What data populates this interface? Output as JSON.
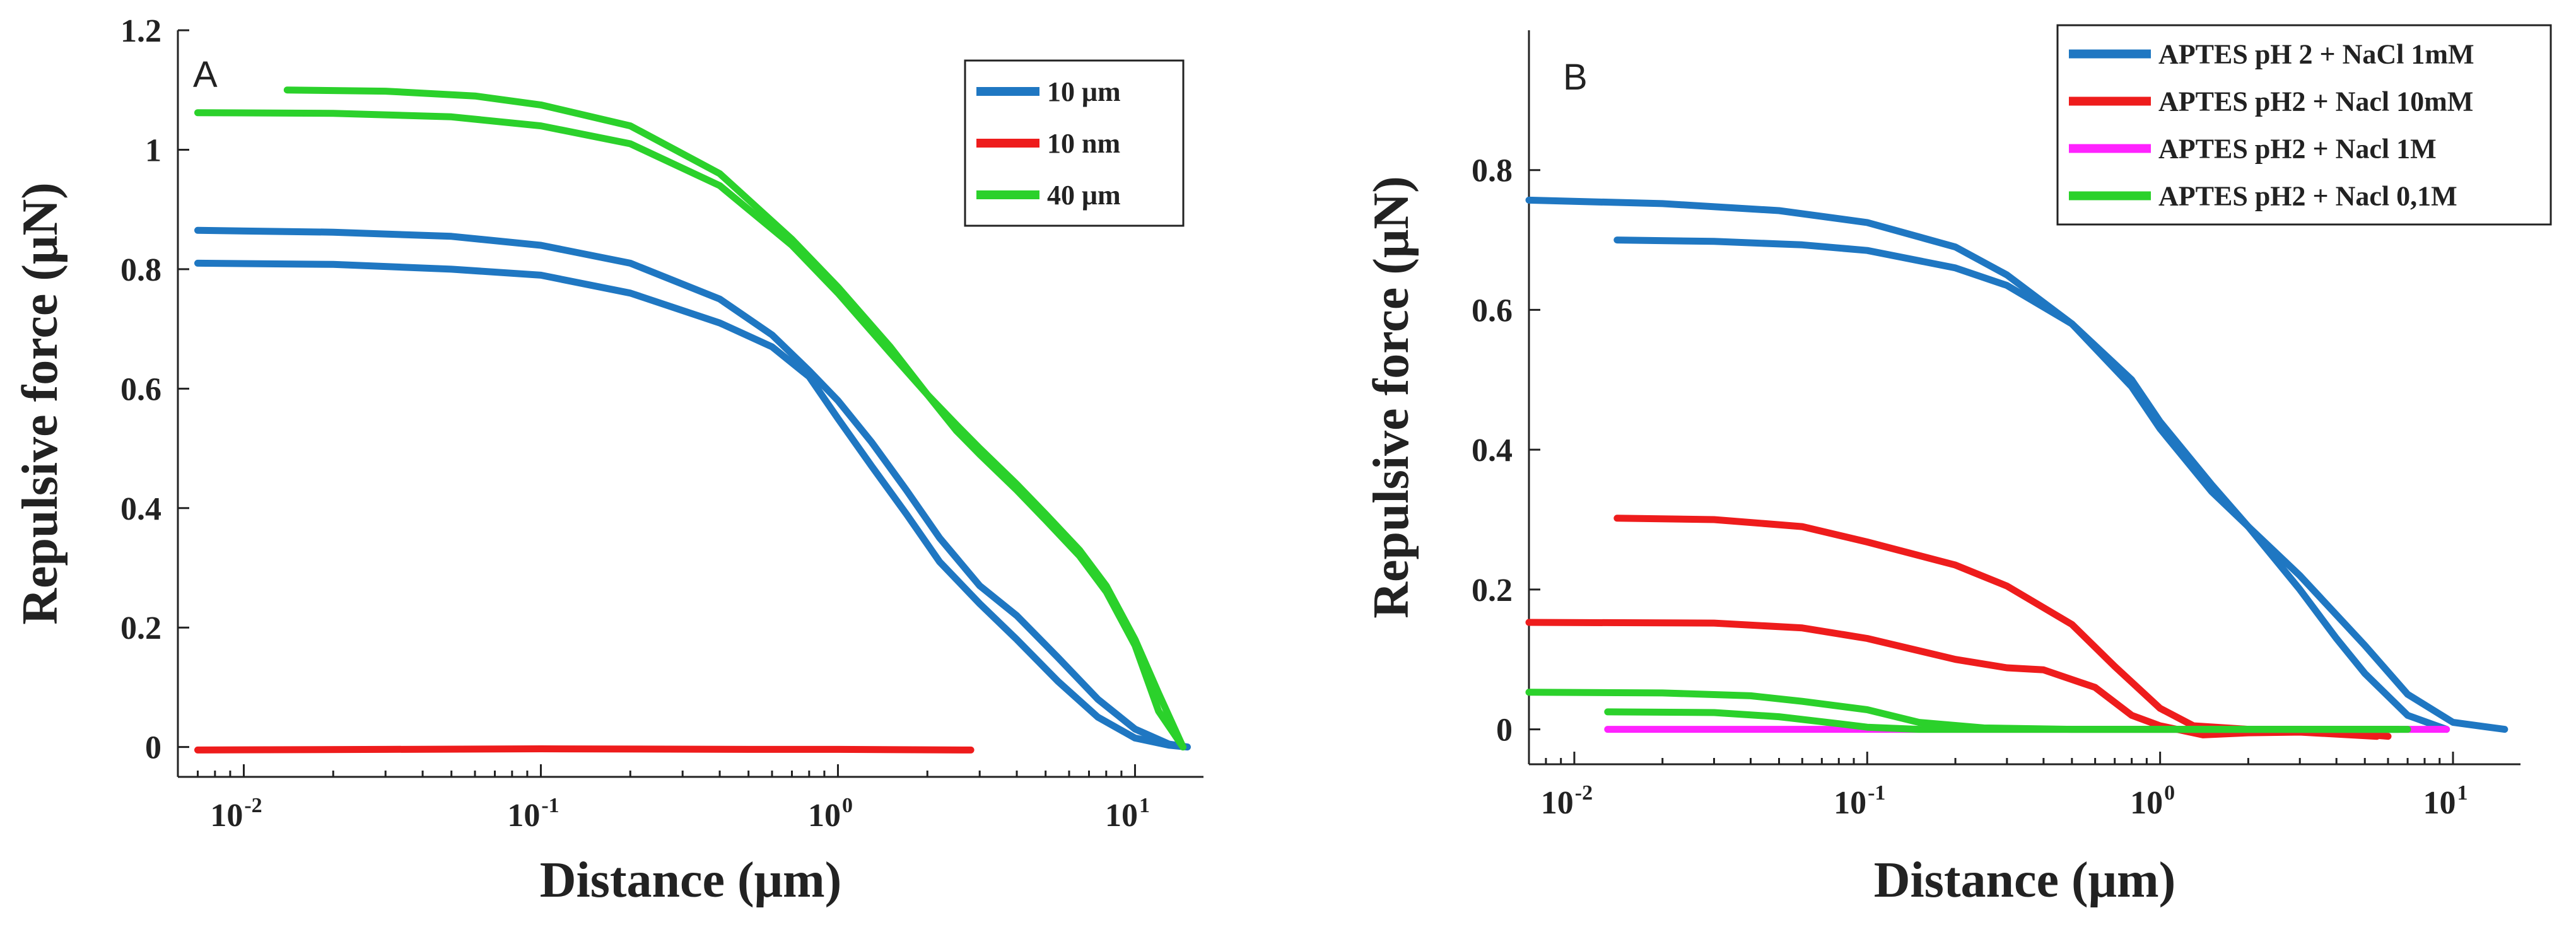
{
  "chart_data": [
    {
      "type": "line",
      "panel_label": "A",
      "xlabel": "Distance (μm)",
      "ylabel": "Repulsive force (μN)",
      "x_scale": "log",
      "xlim": [
        0.006,
        17
      ],
      "ylim": [
        -0.05,
        1.2
      ],
      "y_ticks": [
        {
          "value": 0,
          "label": "0"
        },
        {
          "value": 0.2,
          "label": "0.2"
        },
        {
          "value": 0.4,
          "label": "0.4"
        },
        {
          "value": 0.6,
          "label": "0.6"
        },
        {
          "value": 0.8,
          "label": "0.8"
        },
        {
          "value": 1,
          "label": "1"
        },
        {
          "value": 1.2,
          "label": "1.2"
        }
      ],
      "x_ticks": [
        {
          "value": 0.01,
          "base": "10",
          "exponent": "-2"
        },
        {
          "value": 0.1,
          "base": "10",
          "exponent": "-1"
        },
        {
          "value": 1,
          "base": "10",
          "exponent": "0"
        },
        {
          "value": 10,
          "base": "10",
          "exponent": "1"
        }
      ],
      "legend_position": "top-right",
      "legend": [
        {
          "label": "10 μm",
          "color": "#1f77c2"
        },
        {
          "label": "10 nm",
          "color": "#ee1c1c"
        },
        {
          "label": "40 μm",
          "color": "#2bd12b"
        }
      ],
      "series": [
        {
          "legend_index": 0,
          "color": "#1f77c2",
          "x": [
            0.007,
            0.02,
            0.05,
            0.1,
            0.2,
            0.4,
            0.6,
            0.8,
            1,
            1.3,
            1.7,
            2.2,
            3,
            4,
            5.5,
            7.5,
            10,
            13,
            15
          ],
          "y": [
            0.865,
            0.862,
            0.855,
            0.84,
            0.81,
            0.75,
            0.69,
            0.63,
            0.58,
            0.51,
            0.43,
            0.35,
            0.27,
            0.22,
            0.15,
            0.08,
            0.03,
            0.005,
            0
          ]
        },
        {
          "legend_index": 0,
          "color": "#1f77c2",
          "x": [
            0.007,
            0.02,
            0.05,
            0.1,
            0.2,
            0.4,
            0.6,
            0.8,
            1,
            1.3,
            1.7,
            2.2,
            3,
            4,
            5.5,
            7.5,
            10,
            13,
            15
          ],
          "y": [
            0.81,
            0.808,
            0.8,
            0.79,
            0.76,
            0.71,
            0.67,
            0.62,
            0.55,
            0.47,
            0.39,
            0.31,
            0.24,
            0.18,
            0.11,
            0.05,
            0.015,
            0.003,
            0
          ]
        },
        {
          "legend_index": 1,
          "color": "#ee1c1c",
          "x": [
            0.007,
            0.03,
            0.1,
            0.5,
            1,
            2.8
          ],
          "y": [
            -0.005,
            -0.004,
            -0.003,
            -0.004,
            -0.004,
            -0.005
          ]
        },
        {
          "legend_index": 2,
          "color": "#2bd12b",
          "x": [
            0.014,
            0.03,
            0.06,
            0.1,
            0.2,
            0.4,
            0.7,
            1,
            1.5,
            2,
            2.5,
            3,
            4,
            5,
            6.5,
            8,
            10,
            12,
            14.5
          ],
          "y": [
            1.1,
            1.098,
            1.09,
            1.075,
            1.04,
            0.96,
            0.85,
            0.77,
            0.67,
            0.59,
            0.54,
            0.5,
            0.44,
            0.39,
            0.33,
            0.27,
            0.18,
            0.09,
            0
          ]
        },
        {
          "legend_index": 2,
          "color": "#2bd12b",
          "x": [
            0.007,
            0.02,
            0.05,
            0.1,
            0.2,
            0.4,
            0.7,
            1,
            1.5,
            2,
            2.5,
            3,
            4,
            5,
            6.5,
            8,
            10,
            12,
            14.5
          ],
          "y": [
            1.062,
            1.061,
            1.055,
            1.04,
            1.01,
            0.94,
            0.84,
            0.76,
            0.66,
            0.59,
            0.53,
            0.49,
            0.43,
            0.38,
            0.32,
            0.26,
            0.17,
            0.06,
            0
          ]
        }
      ]
    },
    {
      "type": "line",
      "panel_label": "B",
      "xlabel": "Distance (μm)",
      "ylabel": "Repulsive force (μN)",
      "x_scale": "log",
      "xlim": [
        0.007,
        17
      ],
      "ylim": [
        -0.05,
        1.0
      ],
      "y_ticks": [
        {
          "value": 0,
          "label": "0"
        },
        {
          "value": 0.2,
          "label": "0.2"
        },
        {
          "value": 0.4,
          "label": "0.4"
        },
        {
          "value": 0.6,
          "label": "0.6"
        },
        {
          "value": 0.8,
          "label": "0.8"
        }
      ],
      "x_ticks": [
        {
          "value": 0.01,
          "base": "10",
          "exponent": "-2"
        },
        {
          "value": 0.1,
          "base": "10",
          "exponent": "-1"
        },
        {
          "value": 1,
          "base": "10",
          "exponent": "0"
        },
        {
          "value": 10,
          "base": "10",
          "exponent": "1"
        }
      ],
      "legend_position": "top-right",
      "legend": [
        {
          "label": "APTES pH 2 + NaCl 1mM",
          "color": "#1f77c2"
        },
        {
          "label": "APTES pH2 + Nacl 10mM",
          "color": "#ee1c1c"
        },
        {
          "label": "APTES pH2 + Nacl 1M",
          "color": "#ff22ff"
        },
        {
          "label": "APTES pH2 + Nacl 0,1M",
          "color": "#2bd12b"
        }
      ],
      "series": [
        {
          "legend_index": 0,
          "color": "#1f77c2",
          "x": [
            0.007,
            0.02,
            0.05,
            0.1,
            0.2,
            0.3,
            0.5,
            0.8,
            1,
            1.5,
            2,
            3,
            5,
            7,
            10,
            15
          ],
          "y": [
            0.757,
            0.752,
            0.742,
            0.725,
            0.69,
            0.65,
            0.58,
            0.49,
            0.43,
            0.34,
            0.29,
            0.22,
            0.12,
            0.05,
            0.01,
            0
          ]
        },
        {
          "legend_index": 0,
          "color": "#1f77c2",
          "x": [
            0.014,
            0.03,
            0.06,
            0.1,
            0.2,
            0.3,
            0.5,
            0.8,
            1,
            1.5,
            2,
            3,
            4,
            5,
            7,
            9.5
          ],
          "y": [
            0.7,
            0.698,
            0.693,
            0.685,
            0.66,
            0.635,
            0.58,
            0.5,
            0.44,
            0.35,
            0.29,
            0.2,
            0.13,
            0.08,
            0.02,
            0
          ]
        },
        {
          "legend_index": 1,
          "color": "#ee1c1c",
          "x": [
            0.014,
            0.03,
            0.06,
            0.1,
            0.2,
            0.3,
            0.5,
            0.7,
            1,
            1.3,
            2,
            3,
            6
          ],
          "y": [
            0.302,
            0.3,
            0.29,
            0.268,
            0.235,
            0.205,
            0.15,
            0.09,
            0.03,
            0.005,
            0,
            0,
            -0.01
          ]
        },
        {
          "legend_index": 1,
          "color": "#ee1c1c",
          "x": [
            0.007,
            0.03,
            0.06,
            0.1,
            0.2,
            0.3,
            0.4,
            0.6,
            0.8,
            1,
            1.4,
            2,
            3,
            5.5
          ],
          "y": [
            0.153,
            0.152,
            0.145,
            0.13,
            0.1,
            0.088,
            0.085,
            0.06,
            0.02,
            0.005,
            -0.008,
            -0.005,
            -0.004,
            -0.01
          ]
        },
        {
          "legend_index": 2,
          "color": "#ff22ff",
          "x": [
            0.013,
            0.05,
            0.1,
            0.5,
            1,
            3,
            9.5
          ],
          "y": [
            0,
            0,
            0,
            0,
            0,
            0,
            0
          ]
        },
        {
          "legend_index": 3,
          "color": "#2bd12b",
          "x": [
            0.007,
            0.02,
            0.04,
            0.06,
            0.1,
            0.15,
            0.25,
            0.5,
            1,
            3,
            7
          ],
          "y": [
            0.053,
            0.052,
            0.048,
            0.04,
            0.028,
            0.01,
            0.002,
            0,
            0,
            0,
            0
          ]
        },
        {
          "legend_index": 3,
          "color": "#2bd12b",
          "x": [
            0.013,
            0.03,
            0.05,
            0.08,
            0.1,
            0.15,
            0.3,
            1,
            3,
            6.5
          ],
          "y": [
            0.025,
            0.024,
            0.018,
            0.008,
            0.003,
            0,
            0,
            0,
            0,
            0
          ]
        }
      ]
    }
  ]
}
